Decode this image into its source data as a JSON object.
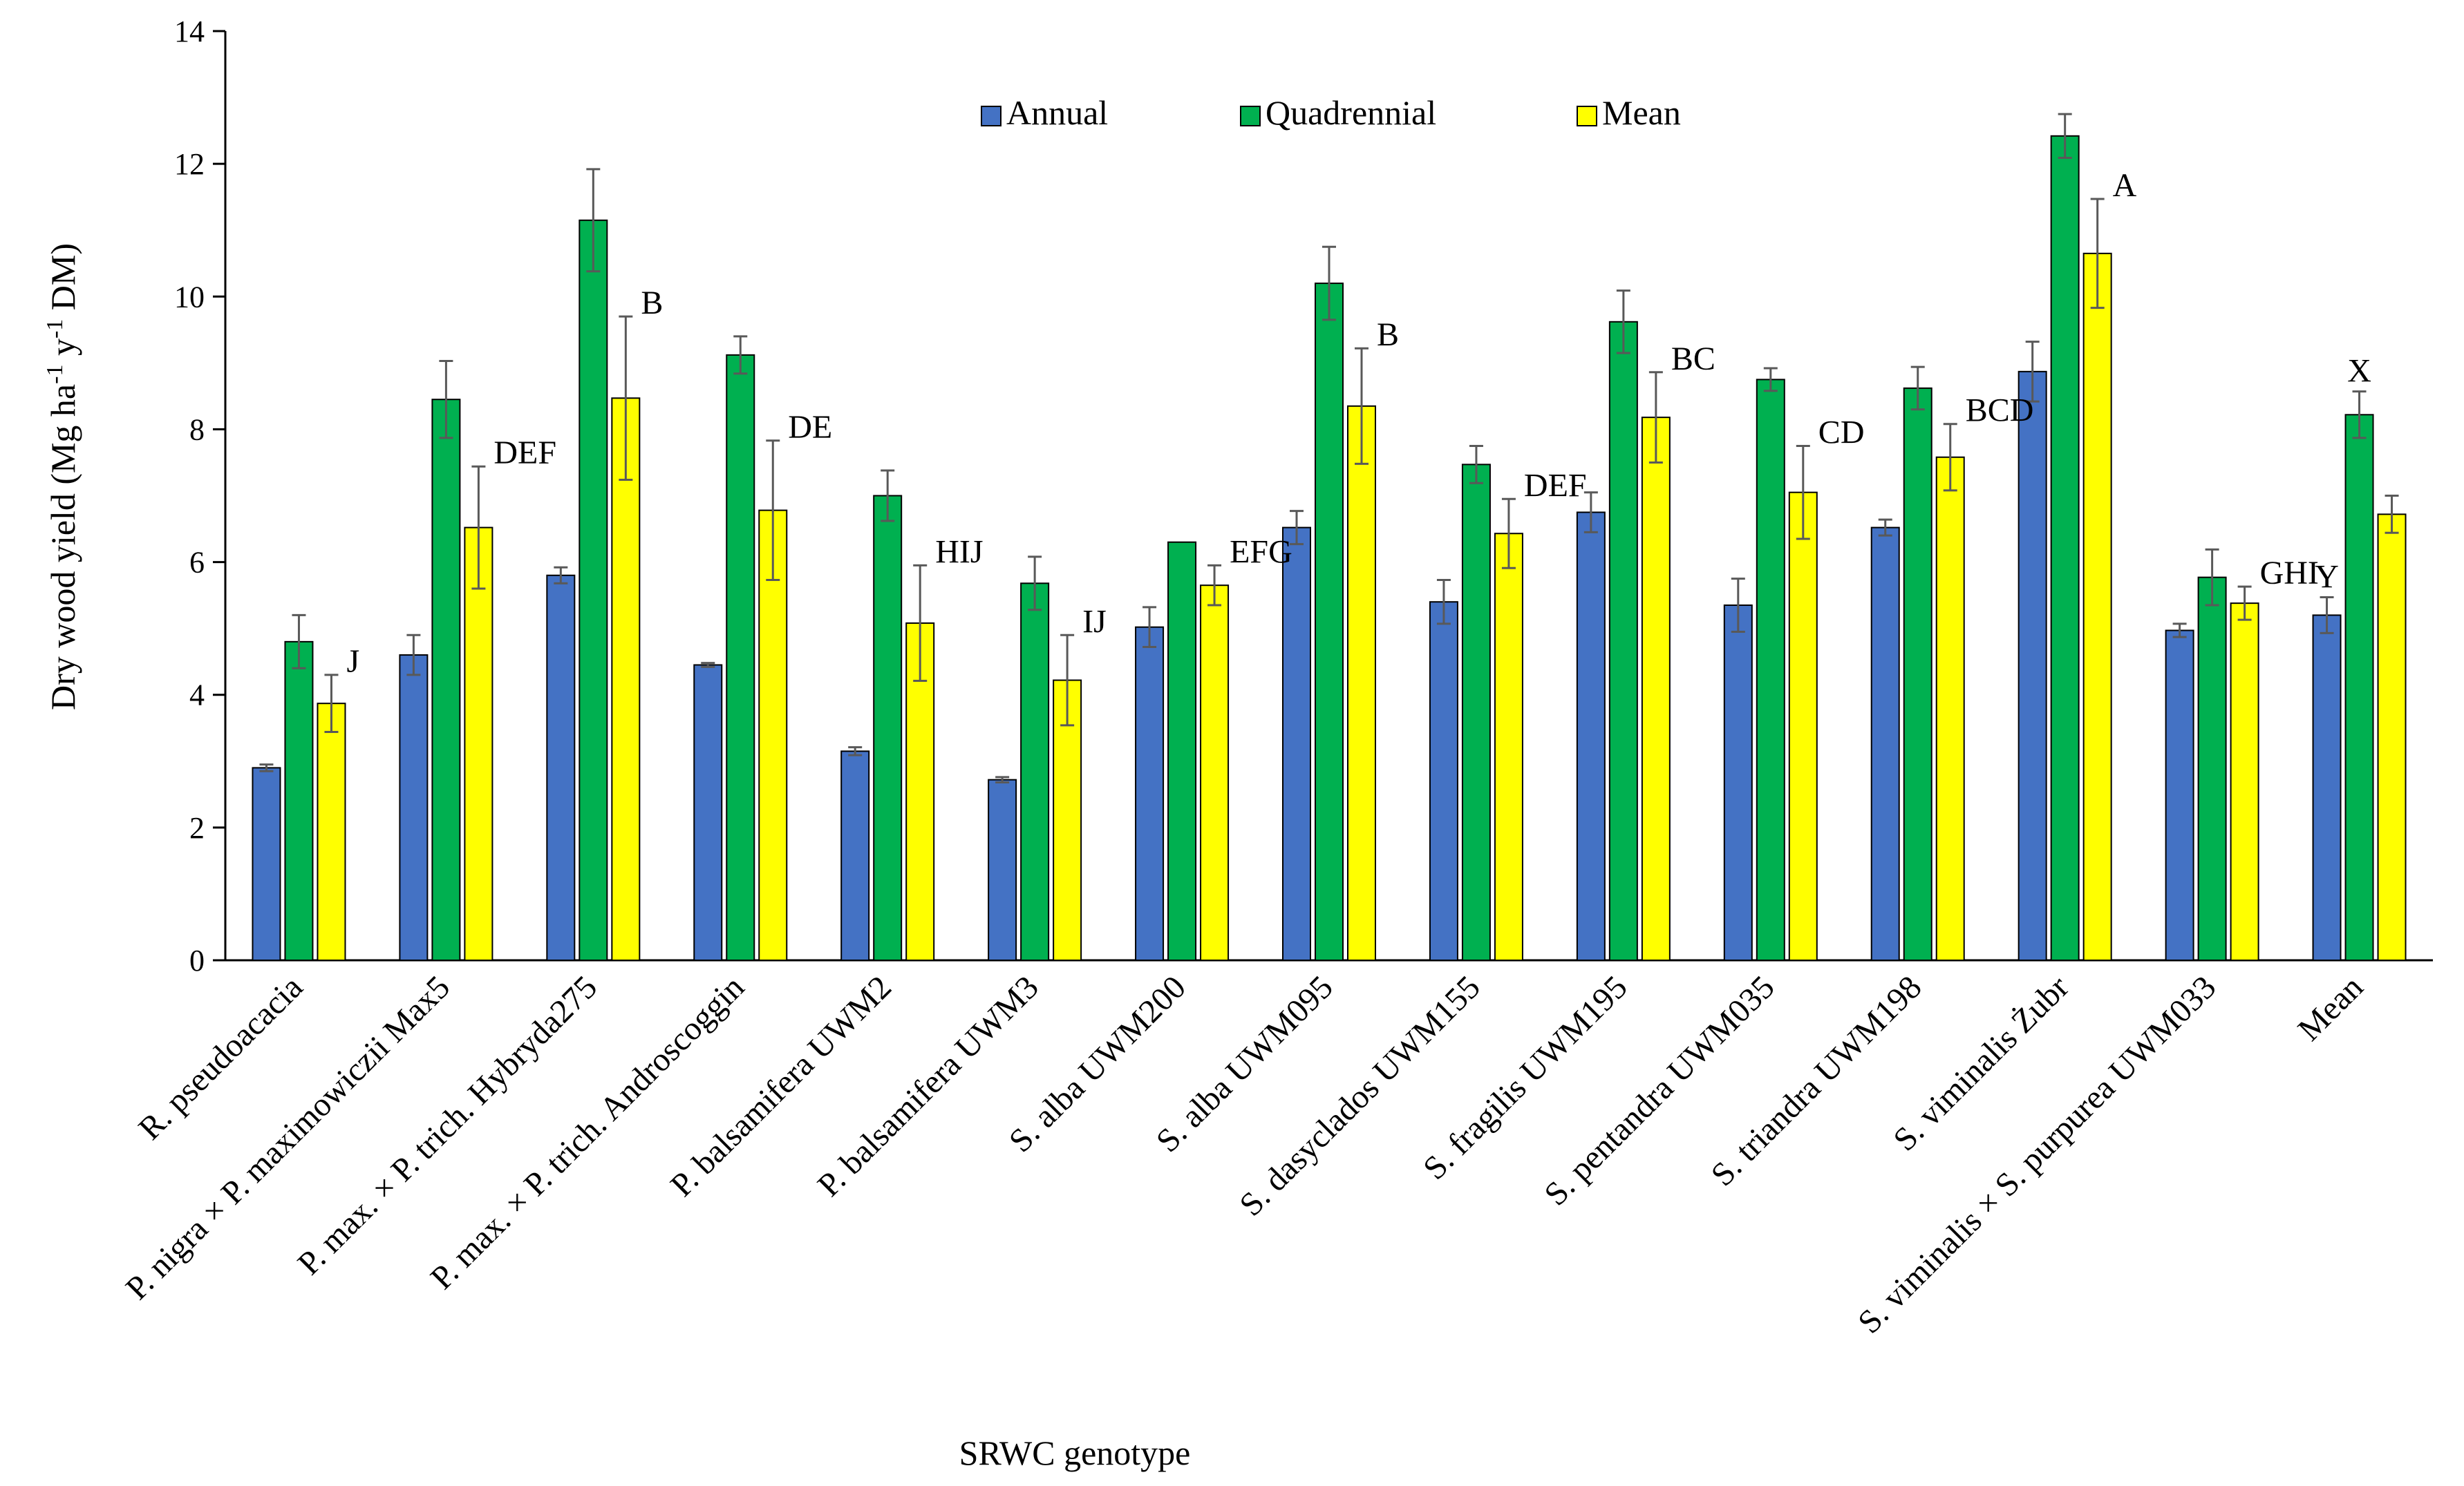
{
  "chart_data": {
    "type": "bar",
    "ylabel": "Dry wood yield  (Mg ha-1 y-1 DM)",
    "ylabel_parts": {
      "prefix": "Dry wood yield  (Mg ha",
      "sup1": "-1",
      "mid": " y",
      "sup2": "-1",
      "suffix": " DM)"
    },
    "xlabel": "SRWC genotype",
    "ylim": [
      0,
      14
    ],
    "yticks": [
      "0",
      "2",
      "4",
      "6",
      "8",
      "10",
      "12",
      "14"
    ],
    "legend_position": "top-center",
    "categories": [
      "R. pseudoacacia",
      "P. nigra × P. maximowiczii Max5",
      "P. max. × P. trich. Hybryda275",
      "P. max. × P. trich. Androscoggin",
      "P. balsamifera UWM2",
      "P. balsamifera UWM3",
      "S. alba UWM200",
      "S. alba UWM095",
      "S. dasyclados UWM155",
      "S. fragilis UWM195",
      "S. pentandra UWM035",
      "S. triandra UWM198",
      "S. viminalis Żubr",
      "S. viminalis × S. purpurea UWM033",
      "Mean"
    ],
    "series": [
      {
        "name": "Annual",
        "color": "#4472C4",
        "values": [
          2.9,
          4.6,
          5.8,
          4.45,
          3.15,
          2.72,
          5.02,
          6.52,
          5.4,
          6.75,
          5.35,
          6.52,
          8.87,
          4.97,
          5.2
        ],
        "errors": [
          0.05,
          0.3,
          0.12,
          0.03,
          0.06,
          0.04,
          0.3,
          0.25,
          0.33,
          0.3,
          0.4,
          0.12,
          0.45,
          0.1,
          0.27
        ],
        "labels": [
          "",
          "",
          "",
          "",
          "",
          "",
          "",
          "",
          "",
          "",
          "",
          "",
          "",
          "",
          "Y"
        ]
      },
      {
        "name": "Quadrennial",
        "color": "#00B050",
        "values": [
          4.8,
          8.45,
          11.15,
          9.12,
          7.0,
          5.68,
          6.3,
          10.2,
          7.47,
          9.62,
          8.75,
          8.62,
          12.42,
          5.77,
          8.22
        ],
        "errors": [
          0.4,
          0.58,
          0.77,
          0.28,
          0.38,
          0.4,
          0.0,
          0.55,
          0.28,
          0.47,
          0.17,
          0.32,
          0.33,
          0.42,
          0.35
        ],
        "labels": [
          "",
          "",
          "",
          "",
          "",
          "",
          "",
          "",
          "",
          "",
          "",
          "",
          "",
          "",
          "X"
        ]
      },
      {
        "name": "Mean",
        "color": "#FFFF00",
        "values": [
          3.87,
          6.52,
          8.47,
          6.78,
          5.08,
          4.22,
          5.65,
          8.35,
          6.43,
          8.18,
          7.05,
          7.58,
          10.65,
          5.38,
          6.72
        ],
        "errors": [
          0.43,
          0.92,
          1.23,
          1.05,
          0.87,
          0.68,
          0.3,
          0.87,
          0.52,
          0.68,
          0.7,
          0.5,
          0.82,
          0.25,
          0.28
        ],
        "labels": [
          "J",
          "DEF",
          "B",
          "DE",
          "HIJ",
          "IJ",
          "EFG",
          "B",
          "DEF",
          "BC",
          "CD",
          "BCD",
          "A",
          "GHI",
          ""
        ]
      }
    ]
  }
}
